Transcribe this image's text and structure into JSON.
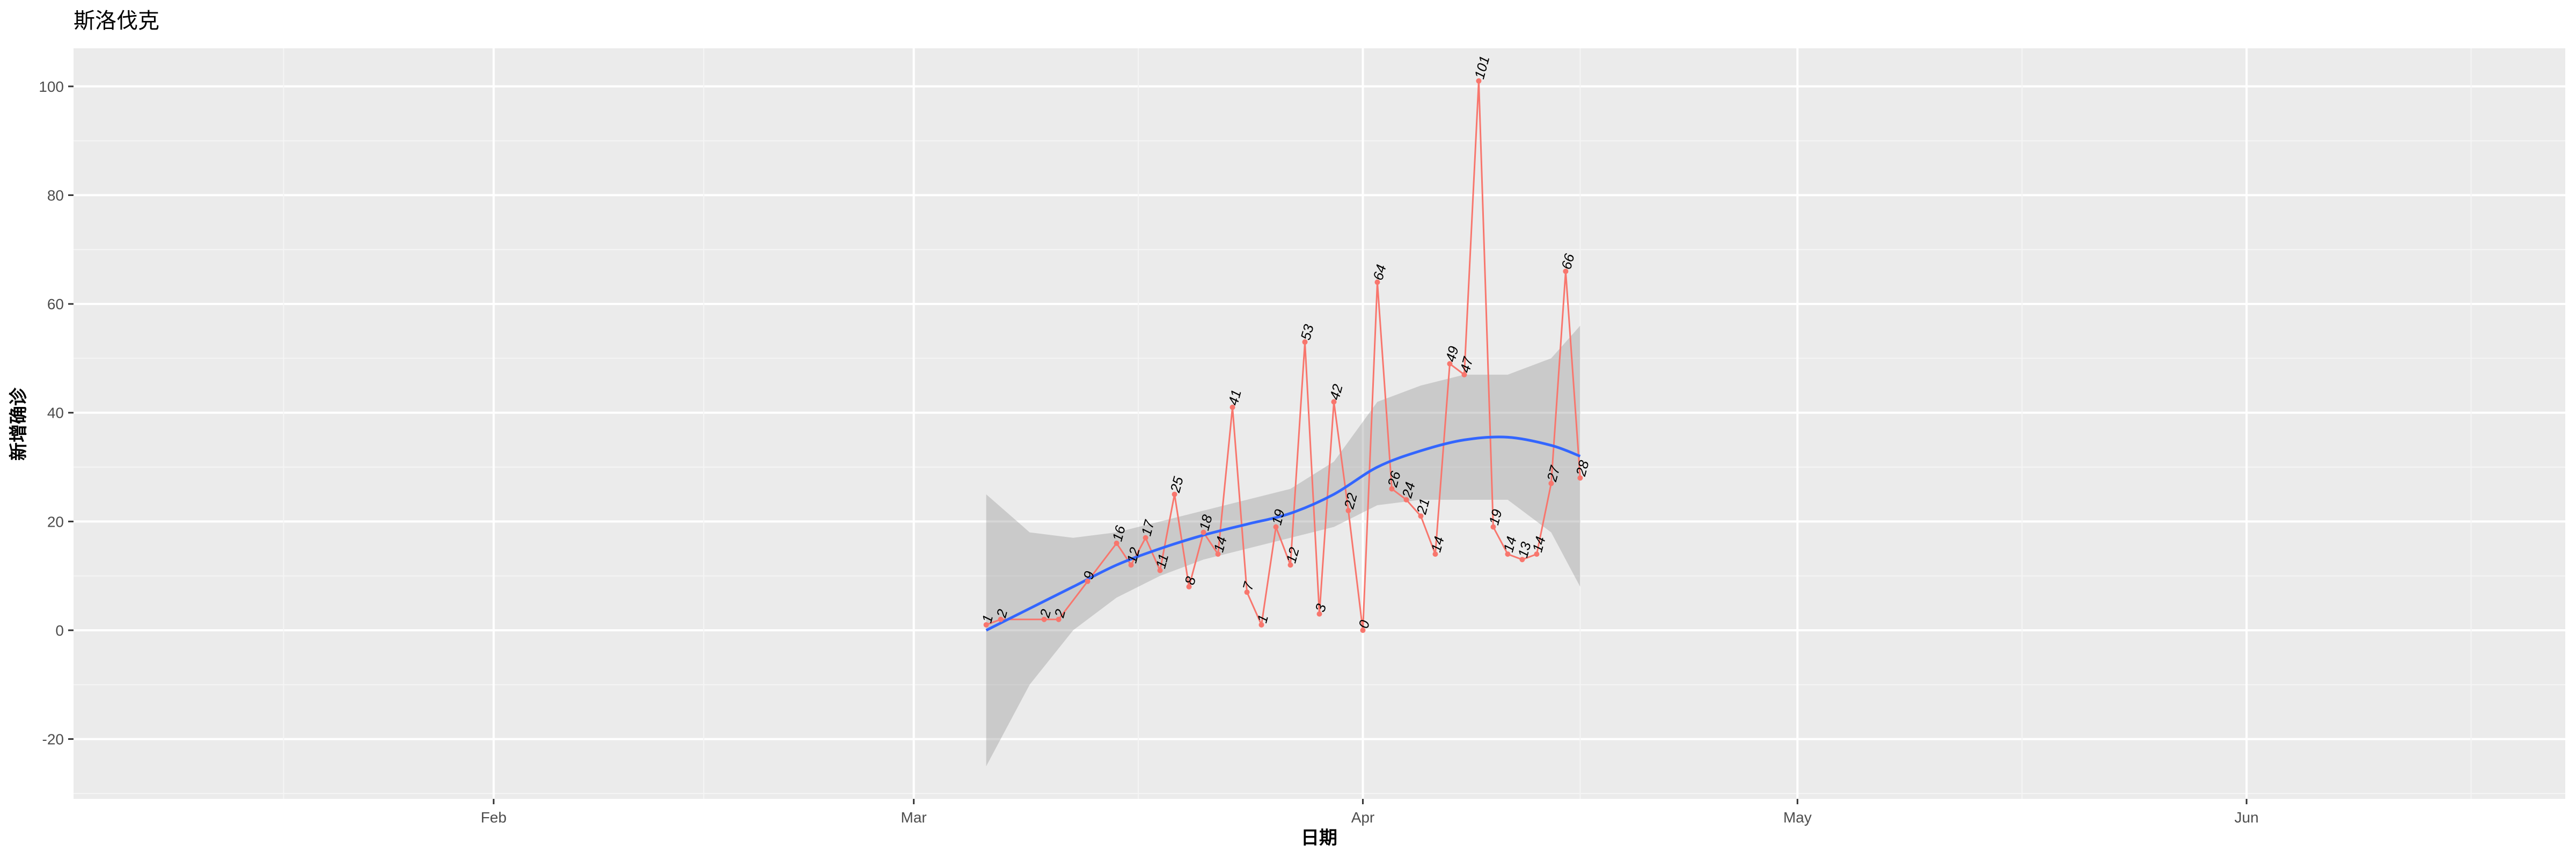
{
  "chart_data": {
    "type": "line",
    "title": "斯洛伐克",
    "xlabel": "日期",
    "ylabel": "新增确诊",
    "x_ticks": [
      {
        "label": "Feb",
        "date": "2020-02-01"
      },
      {
        "label": "Mar",
        "date": "2020-03-01"
      },
      {
        "label": "Apr",
        "date": "2020-04-01"
      },
      {
        "label": "May",
        "date": "2020-05-01"
      },
      {
        "label": "Jun",
        "date": "2020-06-01"
      }
    ],
    "y_ticks": [
      -20,
      0,
      20,
      40,
      60,
      80,
      100
    ],
    "xlim": [
      "2020-01-03",
      "2020-06-23"
    ],
    "ylim": [
      -31,
      107
    ],
    "grid": true,
    "series": [
      {
        "name": "",
        "color": "#f8766d",
        "points": [
          {
            "date": "2020-03-06",
            "value": 1
          },
          {
            "date": "2020-03-07",
            "value": 2
          },
          {
            "date": "2020-03-10",
            "value": 2
          },
          {
            "date": "2020-03-11",
            "value": 2
          },
          {
            "date": "2020-03-13",
            "value": 9
          },
          {
            "date": "2020-03-15",
            "value": 16
          },
          {
            "date": "2020-03-16",
            "value": 12
          },
          {
            "date": "2020-03-17",
            "value": 17
          },
          {
            "date": "2020-03-18",
            "value": 11
          },
          {
            "date": "2020-03-19",
            "value": 25
          },
          {
            "date": "2020-03-20",
            "value": 8
          },
          {
            "date": "2020-03-21",
            "value": 18
          },
          {
            "date": "2020-03-22",
            "value": 14
          },
          {
            "date": "2020-03-23",
            "value": 41
          },
          {
            "date": "2020-03-24",
            "value": 7
          },
          {
            "date": "2020-03-25",
            "value": 1
          },
          {
            "date": "2020-03-26",
            "value": 19
          },
          {
            "date": "2020-03-27",
            "value": 12
          },
          {
            "date": "2020-03-28",
            "value": 53
          },
          {
            "date": "2020-03-29",
            "value": 3
          },
          {
            "date": "2020-03-30",
            "value": 42
          },
          {
            "date": "2020-03-31",
            "value": 22
          },
          {
            "date": "2020-04-01",
            "value": 0
          },
          {
            "date": "2020-04-02",
            "value": 64
          },
          {
            "date": "2020-04-03",
            "value": 26
          },
          {
            "date": "2020-04-04",
            "value": 24
          },
          {
            "date": "2020-04-05",
            "value": 21
          },
          {
            "date": "2020-04-06",
            "value": 14
          },
          {
            "date": "2020-04-07",
            "value": 49
          },
          {
            "date": "2020-04-08",
            "value": 47
          },
          {
            "date": "2020-04-09",
            "value": 101
          },
          {
            "date": "2020-04-10",
            "value": 19
          },
          {
            "date": "2020-04-11",
            "value": 14
          },
          {
            "date": "2020-04-12",
            "value": 13
          },
          {
            "date": "2020-04-13",
            "value": 14
          },
          {
            "date": "2020-04-14",
            "value": 27
          },
          {
            "date": "2020-04-15",
            "value": 66
          },
          {
            "date": "2020-04-16",
            "value": 28
          }
        ]
      }
    ],
    "smooth": {
      "color": "#3366ff",
      "band_color": "#999999",
      "points": [
        {
          "date": "2020-03-06",
          "fit": 0,
          "lower": -25,
          "upper": 25
        },
        {
          "date": "2020-03-09",
          "fit": 4,
          "lower": -10,
          "upper": 18
        },
        {
          "date": "2020-03-12",
          "fit": 8,
          "lower": 0,
          "upper": 17
        },
        {
          "date": "2020-03-15",
          "fit": 12,
          "lower": 6,
          "upper": 18
        },
        {
          "date": "2020-03-18",
          "fit": 15,
          "lower": 10,
          "upper": 20
        },
        {
          "date": "2020-03-21",
          "fit": 17.5,
          "lower": 13,
          "upper": 22
        },
        {
          "date": "2020-03-24",
          "fit": 19.5,
          "lower": 15,
          "upper": 24
        },
        {
          "date": "2020-03-27",
          "fit": 21.5,
          "lower": 17,
          "upper": 26
        },
        {
          "date": "2020-03-30",
          "fit": 25,
          "lower": 19,
          "upper": 31
        },
        {
          "date": "2020-04-02",
          "fit": 30,
          "lower": 23,
          "upper": 42
        },
        {
          "date": "2020-04-05",
          "fit": 33,
          "lower": 24,
          "upper": 45
        },
        {
          "date": "2020-04-08",
          "fit": 35,
          "lower": 24,
          "upper": 47
        },
        {
          "date": "2020-04-11",
          "fit": 35.5,
          "lower": 24,
          "upper": 47
        },
        {
          "date": "2020-04-14",
          "fit": 34,
          "lower": 18,
          "upper": 50
        },
        {
          "date": "2020-04-16",
          "fit": 32,
          "lower": 8,
          "upper": 56
        }
      ]
    }
  }
}
